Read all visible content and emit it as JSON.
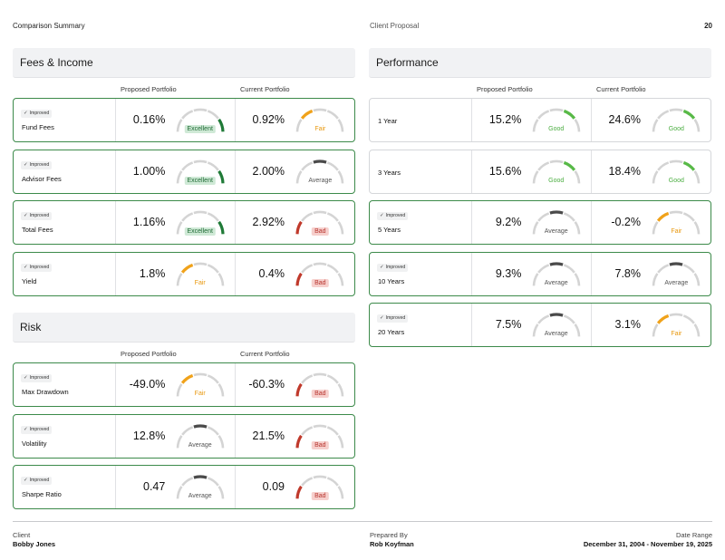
{
  "header": {
    "left": "Comparison Summary",
    "middle": "Client Proposal",
    "page": "20"
  },
  "columns": {
    "proposed": "Proposed Portfolio",
    "current": "Current Portfolio"
  },
  "improved_label": "Improved",
  "colors": {
    "Excellent": "#1f7a37",
    "Good": "#58b947",
    "Fair": "#f0a21a",
    "Average": "#4a4a4a",
    "Bad": "#c0392b",
    "track": "#d4d4d4",
    "improved_border": "#3c8a4a"
  },
  "sections": {
    "fees": {
      "title": "Fees & Income",
      "rows": [
        {
          "name": "Fund Fees",
          "improved": true,
          "proposed": {
            "value": "0.16%",
            "rating": "Excellent"
          },
          "current": {
            "value": "0.92%",
            "rating": "Fair"
          }
        },
        {
          "name": "Advisor Fees",
          "improved": true,
          "proposed": {
            "value": "1.00%",
            "rating": "Excellent"
          },
          "current": {
            "value": "2.00%",
            "rating": "Average"
          }
        },
        {
          "name": "Total Fees",
          "improved": true,
          "proposed": {
            "value": "1.16%",
            "rating": "Excellent"
          },
          "current": {
            "value": "2.92%",
            "rating": "Bad"
          }
        },
        {
          "name": "Yield",
          "improved": true,
          "proposed": {
            "value": "1.8%",
            "rating": "Fair"
          },
          "current": {
            "value": "0.4%",
            "rating": "Bad"
          }
        }
      ]
    },
    "risk": {
      "title": "Risk",
      "rows": [
        {
          "name": "Max Drawdown",
          "improved": true,
          "proposed": {
            "value": "-49.0%",
            "rating": "Fair"
          },
          "current": {
            "value": "-60.3%",
            "rating": "Bad"
          }
        },
        {
          "name": "Volatility",
          "improved": true,
          "proposed": {
            "value": "12.8%",
            "rating": "Average"
          },
          "current": {
            "value": "21.5%",
            "rating": "Bad"
          }
        },
        {
          "name": "Sharpe Ratio",
          "improved": true,
          "proposed": {
            "value": "0.47",
            "rating": "Average"
          },
          "current": {
            "value": "0.09",
            "rating": "Bad"
          }
        }
      ]
    },
    "performance": {
      "title": "Performance",
      "rows": [
        {
          "name": "1 Year",
          "improved": false,
          "proposed": {
            "value": "15.2%",
            "rating": "Good"
          },
          "current": {
            "value": "24.6%",
            "rating": "Good"
          }
        },
        {
          "name": "3 Years",
          "improved": false,
          "proposed": {
            "value": "15.6%",
            "rating": "Good"
          },
          "current": {
            "value": "18.4%",
            "rating": "Good"
          }
        },
        {
          "name": "5 Years",
          "improved": true,
          "proposed": {
            "value": "9.2%",
            "rating": "Average"
          },
          "current": {
            "value": "-0.2%",
            "rating": "Fair"
          }
        },
        {
          "name": "10 Years",
          "improved": true,
          "proposed": {
            "value": "9.3%",
            "rating": "Average"
          },
          "current": {
            "value": "7.8%",
            "rating": "Average"
          }
        },
        {
          "name": "20 Years",
          "improved": true,
          "proposed": {
            "value": "7.5%",
            "rating": "Average"
          },
          "current": {
            "value": "3.1%",
            "rating": "Fair"
          }
        }
      ]
    }
  },
  "footer": {
    "client_label": "Client",
    "client_name": "Bobby Jones",
    "prepared_label": "Prepared By",
    "prepared_name": "Rob Koyfman",
    "date_label": "Date Range",
    "date_value": "December 31, 2004 - November 19, 2025"
  }
}
